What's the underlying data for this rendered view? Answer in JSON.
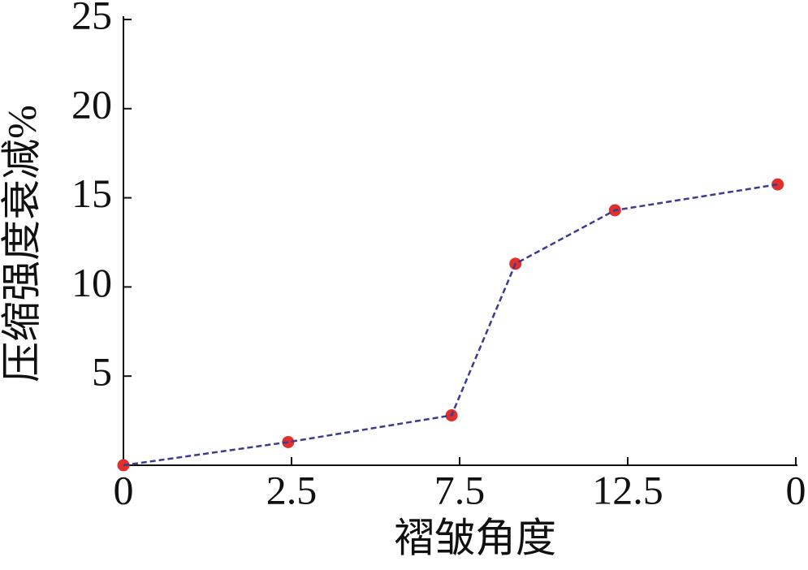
{
  "chart_data": {
    "type": "line",
    "x_label": "褶皱角度",
    "y_label": "压缩强度衰减%",
    "x": [
      0,
      2.45,
      4.88,
      5.83,
      7.31,
      9.73
    ],
    "series": [
      {
        "values": [
          0,
          1.3,
          2.8,
          11.3,
          14.3,
          15.75
        ],
        "color": "#3b3b8f",
        "marker_color": "#e0302e"
      }
    ],
    "xlim": [
      0,
      10
    ],
    "ylim": [
      0,
      25
    ],
    "xticks": [
      0,
      {
        "value": 2.5,
        "label": "2.5"
      },
      {
        "value": 5,
        "label": "7.5"
      },
      {
        "value": 7.5,
        "label": "12.5"
      },
      {
        "value": 10,
        "label": "0"
      }
    ],
    "yticks": [
      5,
      10,
      15,
      20,
      25
    ]
  }
}
